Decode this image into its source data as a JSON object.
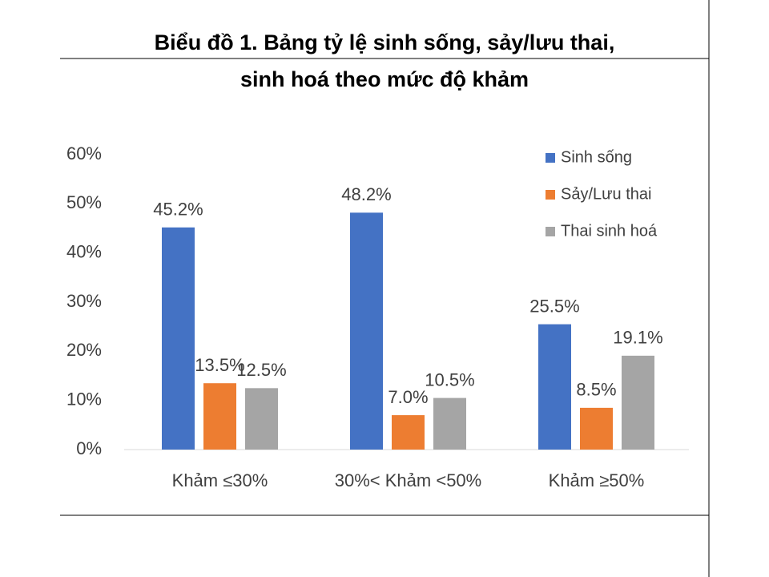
{
  "chart_data": {
    "type": "bar",
    "title": [
      "Biểu đồ 1. Bảng tỷ lệ sinh sống, sảy/lưu thai,",
      "sinh hoá theo mức độ khảm"
    ],
    "categories": [
      "Khảm ≤30%",
      "30%< Khảm <50%",
      "Khảm ≥50%"
    ],
    "series": [
      {
        "name": "Sinh sống",
        "color": "#4472c4",
        "values": [
          45.2,
          48.2,
          25.5
        ],
        "value_labels": [
          "45.2%",
          "48.2%",
          "25.5%"
        ]
      },
      {
        "name": "Sảy/Lưu thai",
        "color": "#ed7d31",
        "values": [
          13.5,
          7.0,
          8.5
        ],
        "value_labels": [
          "13.5%",
          "7.0%",
          "8.5%"
        ]
      },
      {
        "name": "Thai sinh hoá",
        "color": "#a5a5a5",
        "values": [
          12.5,
          10.5,
          19.1
        ],
        "value_labels": [
          "12.5%",
          "10.5%",
          "19.1%"
        ]
      }
    ],
    "ylim": [
      0,
      60
    ],
    "yticks": [
      {
        "value": 0,
        "label": "0%"
      },
      {
        "value": 10,
        "label": "10%"
      },
      {
        "value": 20,
        "label": "20%"
      },
      {
        "value": 30,
        "label": "30%"
      },
      {
        "value": 40,
        "label": "40%"
      },
      {
        "value": 50,
        "label": "50%"
      },
      {
        "value": 60,
        "label": "60%"
      }
    ],
    "grid": false,
    "legend": "top-right"
  }
}
